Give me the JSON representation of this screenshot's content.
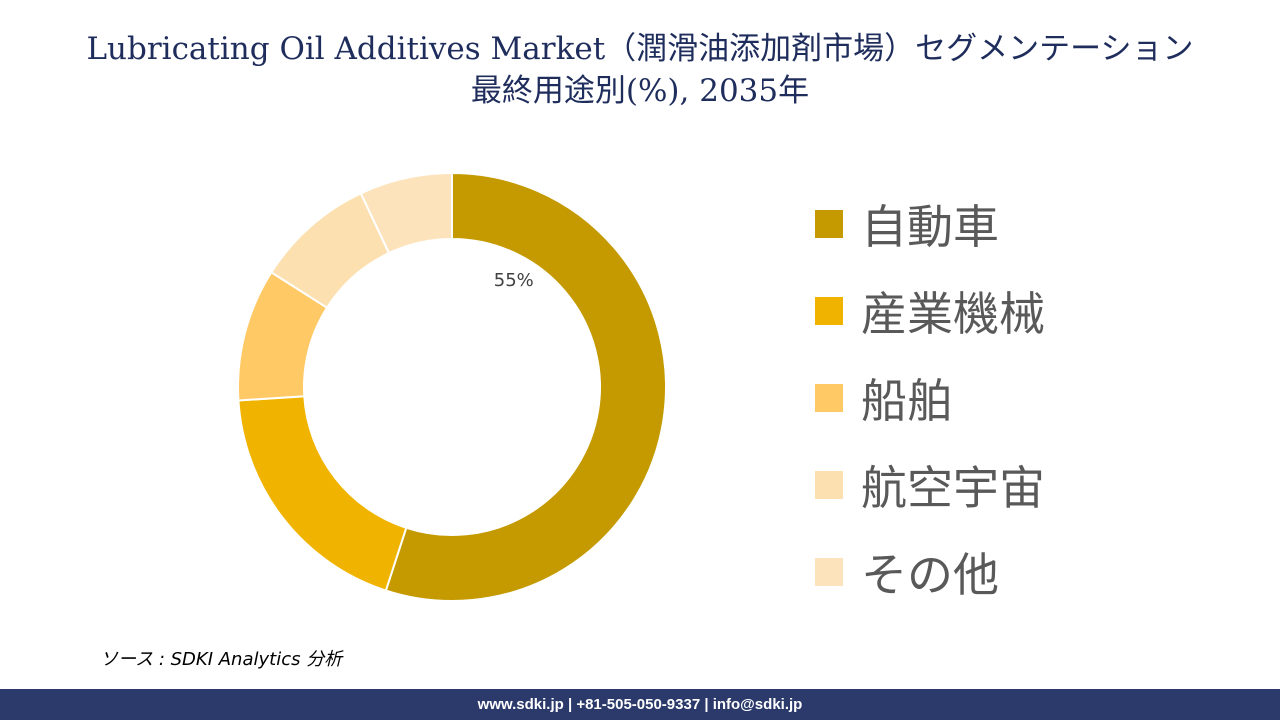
{
  "title_line1": "Lubricating Oil Additives Market（潤滑油添加剤市場）セグメンテーション",
  "title_line2": "最終用途別(%), 2035年",
  "chart_data": {
    "type": "pie",
    "style": "donut",
    "categories": [
      "自動車",
      "産業機械",
      "船舶",
      "航空宇宙",
      "その他"
    ],
    "values": [
      55,
      19,
      10,
      9,
      7
    ],
    "data_labels": [
      "55%",
      "",
      "",
      "",
      ""
    ],
    "colors": [
      "#c49a00",
      "#f0b400",
      "#ffc966",
      "#fde0b0",
      "#fde3bb"
    ],
    "legend_position": "right",
    "start_angle": "12 o'clock, clockwise"
  },
  "source_text": "ソース : SDKI Analytics 分析",
  "footer_text": "www.sdki.jp | +81-505-050-9337 | info@sdki.jp"
}
